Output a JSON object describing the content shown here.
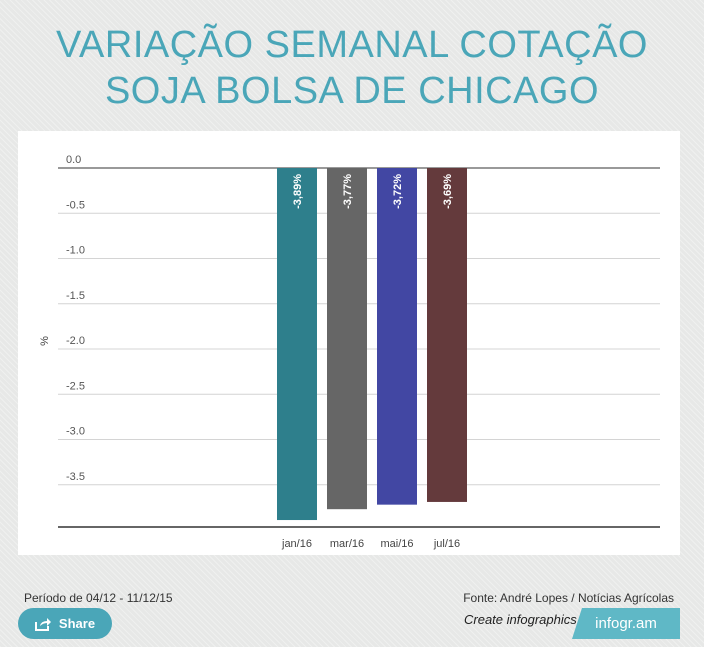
{
  "title_line1": "VARIAÇÃO SEMANAL COTAÇÃO",
  "title_line2": "SOJA BOLSA DE CHICAGO",
  "period_text": "Período de 04/12 - 11/12/15",
  "source_text": "Fonte: André Lopes / Notícias Agrícolas",
  "share_label": "Share",
  "create_label": "Create infographics",
  "brand_label": "infogr.am",
  "chart_data": {
    "type": "bar",
    "categories": [
      "jan/16",
      "mar/16",
      "mai/16",
      "jul/16"
    ],
    "values": [
      -3.89,
      -3.77,
      -3.72,
      -3.69
    ],
    "data_labels": [
      "-3,89%",
      "-3,77%",
      "-3,72%",
      "-3,69%"
    ],
    "colors": [
      "#2e7f8c",
      "#666666",
      "#4247a3",
      "#643a3c"
    ],
    "ylabel": "%",
    "yticks": [
      "0.0",
      "-0.5",
      "-1.0",
      "-1.5",
      "-2.0",
      "-2.5",
      "-3.0",
      "-3.5"
    ],
    "ylim": [
      -4.0,
      0.0
    ],
    "grid": true
  }
}
